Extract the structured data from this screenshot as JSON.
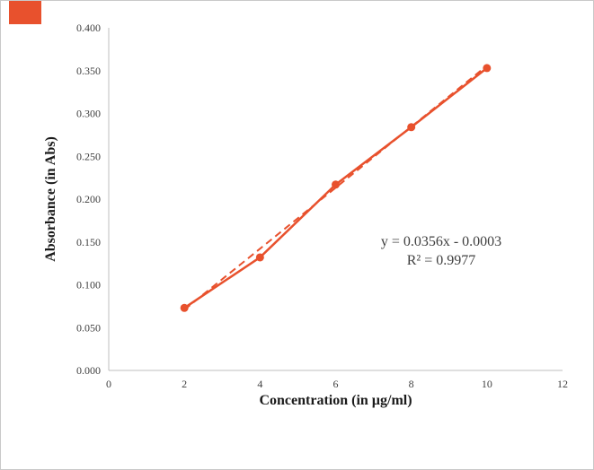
{
  "decor": {
    "corner_accent_color": "#e8512d"
  },
  "chart_data": {
    "type": "line",
    "title": "",
    "xlabel": "Concentration (in µg/ml)",
    "ylabel": "Absorbance (in Abs)",
    "x": [
      2,
      4,
      6,
      8,
      10
    ],
    "series": [
      {
        "name": "Absorbance",
        "values": [
          0.073,
          0.132,
          0.217,
          0.284,
          0.353
        ]
      }
    ],
    "xlim": [
      0,
      12
    ],
    "ylim": [
      0,
      0.4
    ],
    "xticks": [
      0,
      2,
      4,
      6,
      8,
      10,
      12
    ],
    "yticks": [
      0.0,
      0.05,
      0.1,
      0.15,
      0.2,
      0.25,
      0.3,
      0.35,
      0.4
    ],
    "y_tick_decimals": 3,
    "grid": false,
    "legend": "none",
    "line_color": "#e8512d",
    "axis_color": "#bfbfbf",
    "tick_label_color": "#3f3f3f",
    "annotation_color": "#404040",
    "trendline": {
      "slope": 0.0356,
      "intercept": -0.0003,
      "style": "dashed",
      "equation": "y = 0.0356x - 0.0003",
      "r_squared": "R² = 0.9977"
    }
  }
}
